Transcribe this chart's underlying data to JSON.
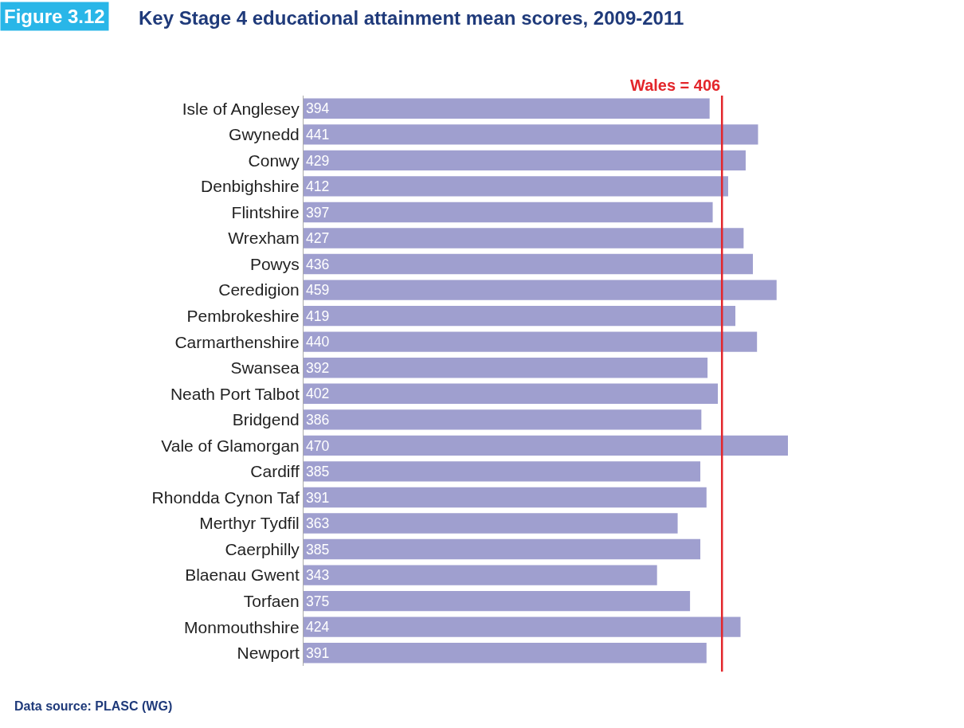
{
  "chart_data": {
    "type": "bar",
    "orientation": "horizontal",
    "title": "Key Stage 4 educational attainment mean scores, 2009-2011",
    "categories": [
      "Isle of Anglesey",
      "Gwynedd",
      "Conwy",
      "Denbighshire",
      "Flintshire",
      "Wrexham",
      "Powys",
      "Ceredigion",
      "Pembrokeshire",
      "Carmarthenshire",
      "Swansea",
      "Neath Port Talbot",
      "Bridgend",
      "Vale of Glamorgan",
      "Cardiff",
      "Rhondda Cynon Taf",
      "Merthyr Tydfil",
      "Caerphilly",
      "Blaenau Gwent",
      "Torfaen",
      "Monmouthshire",
      "Newport"
    ],
    "values": [
      394,
      441,
      429,
      412,
      397,
      427,
      436,
      459,
      419,
      440,
      392,
      402,
      386,
      470,
      385,
      391,
      363,
      385,
      343,
      375,
      424,
      391
    ],
    "color": "#9f9fcf",
    "data_labels": true,
    "tick_labels": "y",
    "ref_lines": [
      {
        "axis": "x",
        "value": 406,
        "label": "Wales = 406",
        "color": "#e3262b"
      }
    ],
    "annotations": [
      "Figure 3.12",
      "Data source: PLASC (WG)"
    ]
  }
}
